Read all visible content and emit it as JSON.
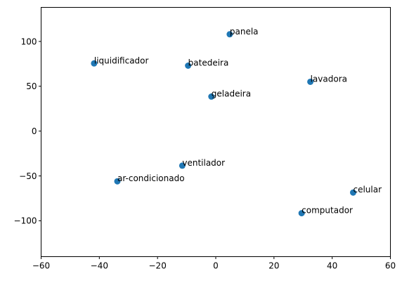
{
  "chart_data": {
    "type": "scatter",
    "title": "",
    "xlabel": "",
    "ylabel": "",
    "xlim": [
      -60,
      60
    ],
    "ylim": [
      -140,
      138
    ],
    "xticks": [
      -60,
      -40,
      -20,
      0,
      20,
      40,
      60
    ],
    "yticks": [
      -100,
      -50,
      0,
      50,
      100
    ],
    "grid": false,
    "marker_color": "#1f77b4",
    "points": [
      {
        "label": "panela",
        "x": 4.8,
        "y": 108
      },
      {
        "label": "liquidificador",
        "x": -41.8,
        "y": 75.5
      },
      {
        "label": "batedeira",
        "x": -9.5,
        "y": 73
      },
      {
        "label": "lavadora",
        "x": 32.5,
        "y": 55
      },
      {
        "label": "geladeira",
        "x": -1.5,
        "y": 38.5
      },
      {
        "label": "ventilador",
        "x": -11.5,
        "y": -38.5
      },
      {
        "label": "ar-condicionado",
        "x": -33.8,
        "y": -56
      },
      {
        "label": "celular",
        "x": 47.2,
        "y": -68.5
      },
      {
        "label": "computador",
        "x": 29.5,
        "y": -91.5
      }
    ]
  }
}
